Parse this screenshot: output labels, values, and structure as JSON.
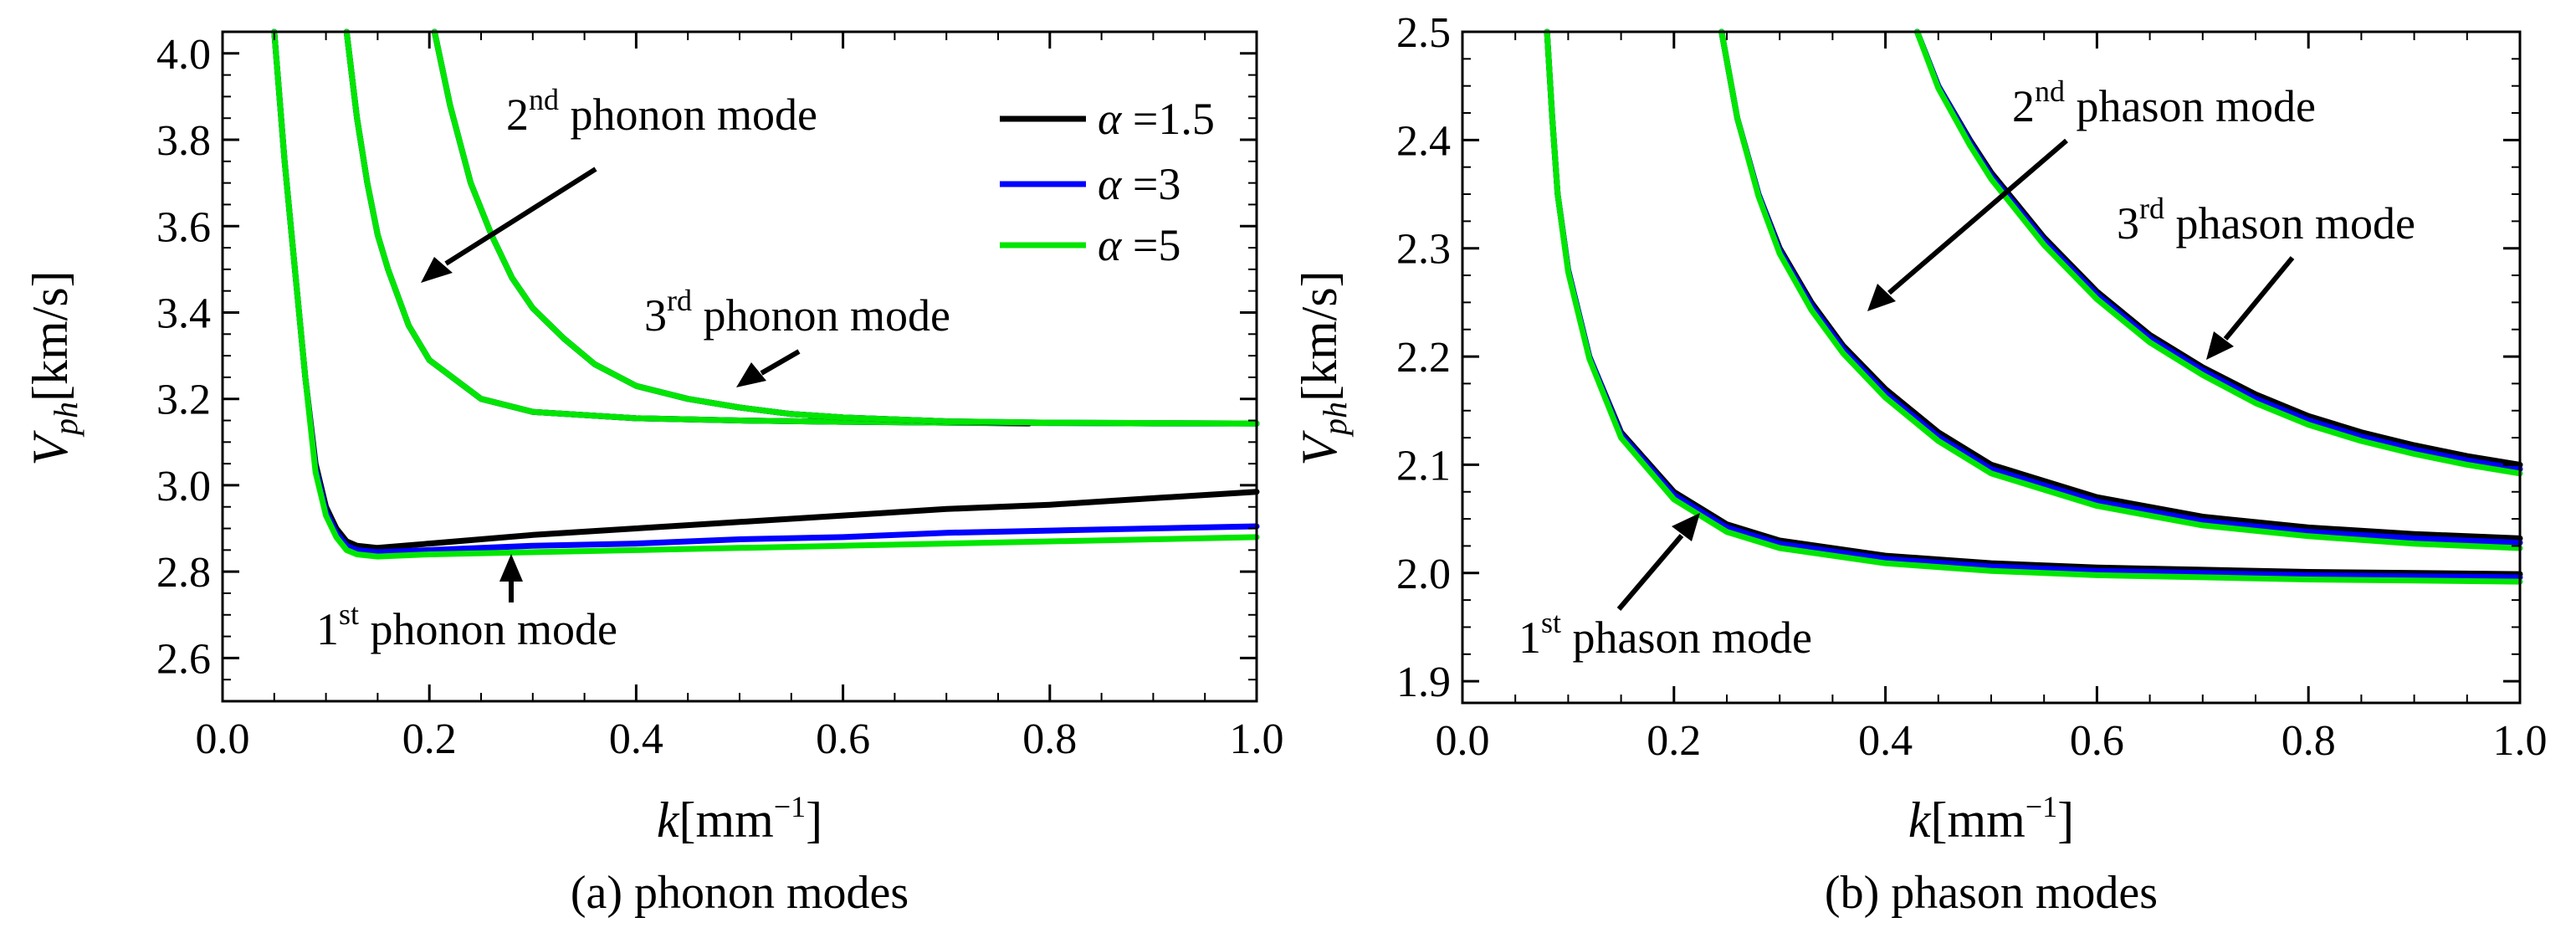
{
  "chart_data": [
    {
      "id": "a",
      "type": "line",
      "caption": "(a) phonon modes",
      "ylabel": "V",
      "ylabel_sub": "ph",
      "ylabel_unit": "[km/s]",
      "xlabel": "k",
      "xlabel_unit": "[mm",
      "xlabel_exp": "−1",
      "xlabel_close": "]",
      "xlim": [
        0.0,
        1.0
      ],
      "ylim": [
        2.5,
        4.05
      ],
      "xticks": [
        "0.0",
        "0.2",
        "0.4",
        "0.6",
        "0.8",
        "1.0"
      ],
      "yticks": [
        "2.6",
        "2.8",
        "3.0",
        "3.2",
        "3.4",
        "3.6",
        "3.8",
        "4.0"
      ],
      "legend": [
        {
          "label": "α =1.5",
          "greek": "α",
          "rest": " =1.5",
          "color": "#000000"
        },
        {
          "label": "α =3",
          "greek": "α",
          "rest": " =3",
          "color": "#0000ff"
        },
        {
          "label": "α =5",
          "greek": "α",
          "rest": " =5",
          "color": "#00e600"
        }
      ],
      "annotations": [
        {
          "ord": "2",
          "sup": "nd",
          "text": " phonon mode"
        },
        {
          "ord": "3",
          "sup": "rd",
          "text": " phonon mode"
        },
        {
          "ord": "1",
          "sup": "st",
          "text": " phonon mode"
        }
      ],
      "series": [
        {
          "name": "α =1.5 mode 1",
          "color": "#000000",
          "x": [
            0.05,
            0.06,
            0.07,
            0.08,
            0.09,
            0.1,
            0.11,
            0.12,
            0.13,
            0.15,
            0.2,
            0.3,
            0.4,
            0.5,
            0.6,
            0.7,
            0.8,
            0.9,
            1.0
          ],
          "values": [
            4.05,
            3.75,
            3.5,
            3.25,
            3.05,
            2.95,
            2.9,
            2.87,
            2.86,
            2.855,
            2.865,
            2.885,
            2.9,
            2.915,
            2.93,
            2.945,
            2.955,
            2.97,
            2.985
          ]
        },
        {
          "name": "α =3 mode 1",
          "color": "#0000ff",
          "x": [
            0.05,
            0.06,
            0.07,
            0.08,
            0.09,
            0.1,
            0.11,
            0.12,
            0.13,
            0.15,
            0.2,
            0.3,
            0.4,
            0.5,
            0.6,
            0.7,
            0.8,
            0.9,
            1.0
          ],
          "values": [
            4.05,
            3.75,
            3.5,
            3.25,
            3.04,
            2.94,
            2.89,
            2.86,
            2.85,
            2.845,
            2.85,
            2.86,
            2.865,
            2.875,
            2.88,
            2.89,
            2.895,
            2.9,
            2.905
          ]
        },
        {
          "name": "α =5 mode 1",
          "color": "#00e600",
          "x": [
            0.05,
            0.06,
            0.07,
            0.08,
            0.09,
            0.1,
            0.11,
            0.12,
            0.13,
            0.15,
            0.2,
            0.3,
            0.4,
            0.5,
            0.6,
            0.7,
            0.8,
            0.9,
            1.0
          ],
          "values": [
            4.05,
            3.75,
            3.5,
            3.25,
            3.03,
            2.93,
            2.88,
            2.85,
            2.84,
            2.835,
            2.84,
            2.845,
            2.85,
            2.855,
            2.86,
            2.865,
            2.87,
            2.875,
            2.88
          ]
        },
        {
          "name": "α =1.5 mode 2",
          "color": "#000000",
          "x": [
            0.12,
            0.13,
            0.14,
            0.15,
            0.16,
            0.18,
            0.2,
            0.25,
            0.3,
            0.4,
            0.5,
            0.6,
            0.7,
            0.78
          ],
          "values": [
            4.05,
            3.85,
            3.7,
            3.58,
            3.5,
            3.37,
            3.29,
            3.2,
            3.17,
            3.155,
            3.15,
            3.147,
            3.145,
            3.143
          ]
        },
        {
          "name": "α =3 mode 2",
          "color": "#0000ff",
          "x": [
            0.12,
            0.13,
            0.14,
            0.15,
            0.16,
            0.18,
            0.2,
            0.25,
            0.3,
            0.4,
            0.5,
            0.6,
            0.7,
            0.8,
            0.9,
            1.0
          ],
          "values": [
            4.05,
            3.85,
            3.7,
            3.58,
            3.5,
            3.37,
            3.29,
            3.2,
            3.17,
            3.155,
            3.15,
            3.147,
            3.145,
            3.144,
            3.143,
            3.143
          ]
        },
        {
          "name": "α =5 mode 2",
          "color": "#00e600",
          "x": [
            0.12,
            0.13,
            0.14,
            0.15,
            0.16,
            0.18,
            0.2,
            0.25,
            0.3,
            0.4,
            0.5,
            0.6,
            0.7,
            0.8,
            0.9,
            1.0
          ],
          "values": [
            4.05,
            3.85,
            3.7,
            3.58,
            3.5,
            3.37,
            3.29,
            3.2,
            3.17,
            3.155,
            3.15,
            3.147,
            3.145,
            3.144,
            3.143,
            3.143
          ]
        },
        {
          "name": "α =1.5 mode 3",
          "color": "#000000",
          "x": [
            0.205,
            0.22,
            0.24,
            0.26,
            0.28,
            0.3,
            0.33,
            0.36,
            0.4,
            0.45,
            0.5,
            0.55,
            0.6,
            0.7,
            0.78
          ],
          "values": [
            4.05,
            3.88,
            3.7,
            3.58,
            3.48,
            3.41,
            3.34,
            3.28,
            3.23,
            3.2,
            3.18,
            3.165,
            3.157,
            3.148,
            3.144
          ]
        },
        {
          "name": "α =3 mode 3",
          "color": "#0000ff",
          "x": [
            0.205,
            0.22,
            0.24,
            0.26,
            0.28,
            0.3,
            0.33,
            0.36,
            0.4,
            0.45,
            0.5,
            0.55,
            0.6,
            0.7,
            0.8,
            0.9,
            1.0
          ],
          "values": [
            4.05,
            3.88,
            3.7,
            3.58,
            3.48,
            3.41,
            3.34,
            3.28,
            3.23,
            3.2,
            3.18,
            3.165,
            3.157,
            3.148,
            3.145,
            3.144,
            3.143
          ]
        },
        {
          "name": "α =5 mode 3",
          "color": "#00e600",
          "x": [
            0.205,
            0.22,
            0.24,
            0.26,
            0.28,
            0.3,
            0.33,
            0.36,
            0.4,
            0.45,
            0.5,
            0.55,
            0.6,
            0.7,
            0.8,
            0.9,
            1.0
          ],
          "values": [
            4.05,
            3.88,
            3.7,
            3.58,
            3.48,
            3.41,
            3.34,
            3.28,
            3.23,
            3.2,
            3.18,
            3.165,
            3.157,
            3.148,
            3.145,
            3.144,
            3.143
          ]
        }
      ]
    },
    {
      "id": "b",
      "type": "line",
      "caption": "(b) phason modes",
      "ylabel": "V",
      "ylabel_sub": "ph",
      "ylabel_unit": "[km/s]",
      "xlabel": "k",
      "xlabel_unit": "[mm",
      "xlabel_exp": "−1",
      "xlabel_close": "]",
      "xlim": [
        0.0,
        1.0
      ],
      "ylim": [
        1.88,
        2.5
      ],
      "xticks": [
        "0.0",
        "0.2",
        "0.4",
        "0.6",
        "0.8",
        "1.0"
      ],
      "yticks": [
        "1.9",
        "2.0",
        "2.1",
        "2.2",
        "2.3",
        "2.4",
        "2.5"
      ],
      "annotations": [
        {
          "ord": "2",
          "sup": "nd",
          "text": " phason mode"
        },
        {
          "ord": "3",
          "sup": "rd",
          "text": " phason mode"
        },
        {
          "ord": "1",
          "sup": "st",
          "text": " phason mode"
        }
      ],
      "series": [
        {
          "name": "α =1.5 mode 1",
          "color": "#000000",
          "x": [
            0.08,
            0.085,
            0.09,
            0.1,
            0.12,
            0.15,
            0.2,
            0.25,
            0.3,
            0.4,
            0.5,
            0.6,
            0.7,
            0.8,
            0.9,
            1.0
          ],
          "values": [
            2.5,
            2.42,
            2.35,
            2.28,
            2.2,
            2.13,
            2.075,
            2.045,
            2.03,
            2.016,
            2.009,
            2.005,
            2.003,
            2.001,
            2.0,
            1.999
          ]
        },
        {
          "name": "α =3 mode 1",
          "color": "#0000ff",
          "x": [
            0.08,
            0.085,
            0.09,
            0.1,
            0.12,
            0.15,
            0.2,
            0.25,
            0.3,
            0.4,
            0.5,
            0.6,
            0.7,
            0.8,
            0.9,
            1.0
          ],
          "values": [
            2.5,
            2.42,
            2.35,
            2.28,
            2.2,
            2.128,
            2.072,
            2.042,
            2.027,
            2.013,
            2.006,
            2.002,
            2.0,
            1.998,
            1.997,
            1.996
          ]
        },
        {
          "name": "α =5 mode 1",
          "color": "#00e600",
          "x": [
            0.08,
            0.085,
            0.09,
            0.1,
            0.12,
            0.15,
            0.2,
            0.25,
            0.3,
            0.4,
            0.5,
            0.6,
            0.7,
            0.8,
            0.9,
            1.0
          ],
          "values": [
            2.5,
            2.42,
            2.35,
            2.278,
            2.198,
            2.125,
            2.068,
            2.038,
            2.023,
            2.009,
            2.002,
            1.998,
            1.996,
            1.994,
            1.993,
            1.992
          ]
        },
        {
          "name": "α =1.5 mode 2",
          "color": "#000000",
          "x": [
            0.245,
            0.26,
            0.28,
            0.3,
            0.33,
            0.36,
            0.4,
            0.45,
            0.5,
            0.6,
            0.7,
            0.8,
            0.9,
            1.0
          ],
          "values": [
            2.5,
            2.42,
            2.35,
            2.3,
            2.25,
            2.21,
            2.17,
            2.13,
            2.1,
            2.07,
            2.052,
            2.042,
            2.036,
            2.032
          ]
        },
        {
          "name": "α =3 mode 2",
          "color": "#0000ff",
          "x": [
            0.245,
            0.26,
            0.28,
            0.3,
            0.33,
            0.36,
            0.4,
            0.45,
            0.5,
            0.6,
            0.7,
            0.8,
            0.9,
            1.0
          ],
          "values": [
            2.5,
            2.42,
            2.35,
            2.298,
            2.247,
            2.207,
            2.166,
            2.126,
            2.096,
            2.066,
            2.048,
            2.038,
            2.032,
            2.028
          ]
        },
        {
          "name": "α =5 mode 2",
          "color": "#00e600",
          "x": [
            0.245,
            0.26,
            0.28,
            0.3,
            0.33,
            0.36,
            0.4,
            0.45,
            0.5,
            0.6,
            0.7,
            0.8,
            0.9,
            1.0
          ],
          "values": [
            2.5,
            2.42,
            2.348,
            2.295,
            2.243,
            2.203,
            2.162,
            2.122,
            2.092,
            2.062,
            2.044,
            2.034,
            2.027,
            2.023
          ]
        },
        {
          "name": "α =1.5 mode 3",
          "color": "#000000",
          "x": [
            0.43,
            0.45,
            0.48,
            0.5,
            0.55,
            0.6,
            0.65,
            0.7,
            0.75,
            0.8,
            0.85,
            0.9,
            0.95,
            1.0
          ],
          "values": [
            2.5,
            2.45,
            2.4,
            2.37,
            2.31,
            2.26,
            2.22,
            2.19,
            2.165,
            2.145,
            2.13,
            2.118,
            2.108,
            2.1
          ]
        },
        {
          "name": "α =3 mode 3",
          "color": "#0000ff",
          "x": [
            0.43,
            0.45,
            0.48,
            0.5,
            0.55,
            0.6,
            0.65,
            0.7,
            0.75,
            0.8,
            0.85,
            0.9,
            0.95,
            1.0
          ],
          "values": [
            2.5,
            2.45,
            2.398,
            2.367,
            2.307,
            2.257,
            2.217,
            2.187,
            2.161,
            2.141,
            2.126,
            2.114,
            2.104,
            2.096
          ]
        },
        {
          "name": "α =5 mode 3",
          "color": "#00e600",
          "x": [
            0.43,
            0.45,
            0.48,
            0.5,
            0.55,
            0.6,
            0.65,
            0.7,
            0.75,
            0.8,
            0.85,
            0.9,
            0.95,
            1.0
          ],
          "values": [
            2.5,
            2.448,
            2.395,
            2.364,
            2.303,
            2.253,
            2.213,
            2.183,
            2.157,
            2.137,
            2.122,
            2.11,
            2.1,
            2.092
          ]
        }
      ]
    }
  ]
}
